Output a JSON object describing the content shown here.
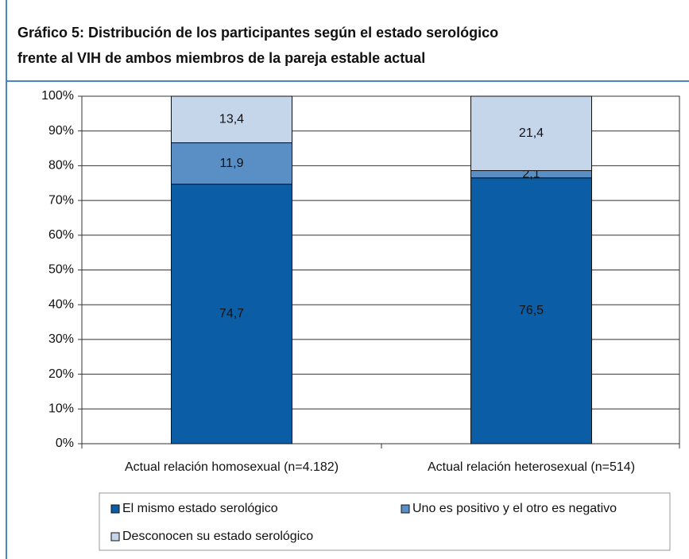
{
  "chart_data": {
    "type": "stacked_bar",
    "title_lines": [
      "Gráfico 5: Distribución de los participantes según el estado serológico",
      "frente al VIH de ambos miembros de la pareja estable actual"
    ],
    "categories": [
      "Actual relación homosexual (n=4.182)",
      "Actual relación heterosexual (n=514)"
    ],
    "series": [
      {
        "name": "El mismo estado serológico",
        "color": "#0b5ea6",
        "values": [
          74.7,
          76.5
        ],
        "value_labels": [
          "74,7",
          "76,5"
        ]
      },
      {
        "name": "Uno es positivo y el otro es negativo",
        "color": "#5a8fc6",
        "values": [
          11.9,
          2.1
        ],
        "value_labels": [
          "11,9",
          "2,1"
        ]
      },
      {
        "name": "Desconocen su estado serológico",
        "color": "#c5d6ea",
        "values": [
          13.4,
          21.4
        ],
        "value_labels": [
          "13,4",
          "21,4"
        ]
      }
    ],
    "ylim": [
      0,
      100
    ],
    "yticks": [
      {
        "value": 0,
        "label": "0%"
      },
      {
        "value": 10,
        "label": "10%"
      },
      {
        "value": 20,
        "label": "20%"
      },
      {
        "value": 30,
        "label": "30%"
      },
      {
        "value": 40,
        "label": "40%"
      },
      {
        "value": 50,
        "label": "50%"
      },
      {
        "value": 60,
        "label": "60%"
      },
      {
        "value": 70,
        "label": "70%"
      },
      {
        "value": 80,
        "label": "80%"
      },
      {
        "value": 90,
        "label": "90%"
      },
      {
        "value": 100,
        "label": "100%"
      }
    ],
    "grid": true
  }
}
